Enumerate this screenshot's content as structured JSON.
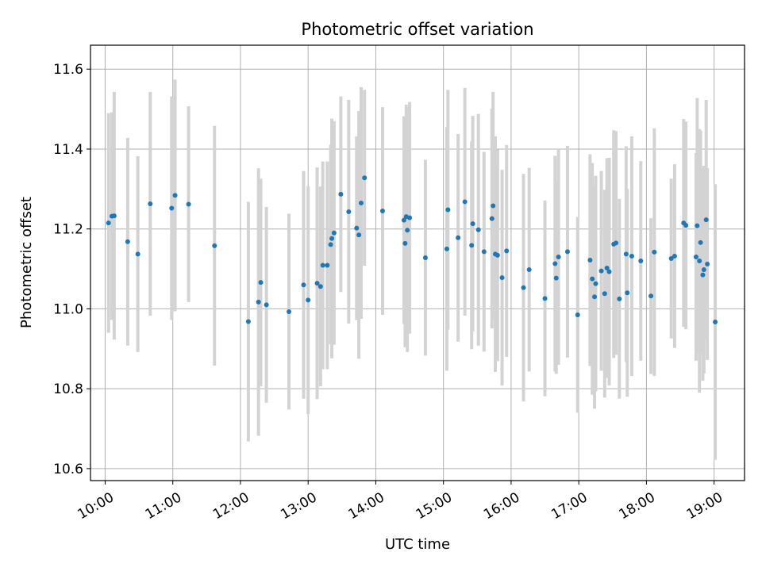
{
  "chart_data": {
    "type": "scatter",
    "title": "Photometric offset variation",
    "xlabel": "UTC time",
    "ylabel": "Photometric offset",
    "x_ticks": [
      "10:00",
      "11:00",
      "12:00",
      "13:00",
      "14:00",
      "15:00",
      "16:00",
      "17:00",
      "18:00",
      "19:00"
    ],
    "y_ticks": [
      "10.6",
      "10.8",
      "11.0",
      "11.2",
      "11.4",
      "11.6"
    ],
    "xlim": [
      "09:47",
      "19:27"
    ],
    "ylim": [
      10.57,
      11.66
    ],
    "grid": true,
    "errorbar_color": "#d3d3d3",
    "point_color": "#1f77b4",
    "points": [
      {
        "t": "10:03",
        "y": 11.215,
        "err": 0.275
      },
      {
        "t": "10:06",
        "y": 11.232,
        "err": 0.26
      },
      {
        "t": "10:08",
        "y": 11.233,
        "err": 0.31
      },
      {
        "t": "10:20",
        "y": 11.168,
        "err": 0.26
      },
      {
        "t": "10:29",
        "y": 11.137,
        "err": 0.245
      },
      {
        "t": "10:40",
        "y": 11.263,
        "err": 0.28
      },
      {
        "t": "10:59",
        "y": 11.252,
        "err": 0.28
      },
      {
        "t": "11:02",
        "y": 11.284,
        "err": 0.29
      },
      {
        "t": "11:14",
        "y": 11.262,
        "err": 0.245
      },
      {
        "t": "11:37",
        "y": 11.158,
        "err": 0.3
      },
      {
        "t": "12:07",
        "y": 10.968,
        "err": 0.3
      },
      {
        "t": "12:16",
        "y": 11.017,
        "err": 0.335
      },
      {
        "t": "12:18",
        "y": 11.066,
        "err": 0.26
      },
      {
        "t": "12:23",
        "y": 11.01,
        "err": 0.245
      },
      {
        "t": "12:43",
        "y": 10.993,
        "err": 0.245
      },
      {
        "t": "12:56",
        "y": 11.06,
        "err": 0.285
      },
      {
        "t": "13:00",
        "y": 11.022,
        "err": 0.285
      },
      {
        "t": "13:08",
        "y": 11.064,
        "err": 0.29
      },
      {
        "t": "13:11",
        "y": 11.056,
        "err": 0.25
      },
      {
        "t": "13:13",
        "y": 11.109,
        "err": 0.26
      },
      {
        "t": "13:17",
        "y": 11.109,
        "err": 0.26
      },
      {
        "t": "13:20",
        "y": 11.161,
        "err": 0.25
      },
      {
        "t": "13:21",
        "y": 11.176,
        "err": 0.3
      },
      {
        "t": "13:23",
        "y": 11.19,
        "err": 0.28
      },
      {
        "t": "13:29",
        "y": 11.287,
        "err": 0.245
      },
      {
        "t": "13:36",
        "y": 11.243,
        "err": 0.28
      },
      {
        "t": "13:43",
        "y": 11.202,
        "err": 0.23
      },
      {
        "t": "13:45",
        "y": 11.185,
        "err": 0.31
      },
      {
        "t": "13:47",
        "y": 11.265,
        "err": 0.29
      },
      {
        "t": "13:50",
        "y": 11.328,
        "err": 0.22
      },
      {
        "t": "14:06",
        "y": 11.245,
        "err": 0.26
      },
      {
        "t": "14:25",
        "y": 11.222,
        "err": 0.26
      },
      {
        "t": "14:26",
        "y": 11.164,
        "err": 0.26
      },
      {
        "t": "14:27",
        "y": 11.231,
        "err": 0.28
      },
      {
        "t": "14:28",
        "y": 11.197,
        "err": 0.305
      },
      {
        "t": "14:30",
        "y": 11.228,
        "err": 0.29
      },
      {
        "t": "14:44",
        "y": 11.128,
        "err": 0.245
      },
      {
        "t": "15:03",
        "y": 11.15,
        "err": 0.305
      },
      {
        "t": "15:04",
        "y": 11.248,
        "err": 0.3
      },
      {
        "t": "15:13",
        "y": 11.178,
        "err": 0.26
      },
      {
        "t": "15:19",
        "y": 11.268,
        "err": 0.285
      },
      {
        "t": "15:25",
        "y": 11.159,
        "err": 0.26
      },
      {
        "t": "15:26",
        "y": 11.213,
        "err": 0.27
      },
      {
        "t": "15:31",
        "y": 11.198,
        "err": 0.29
      },
      {
        "t": "15:36",
        "y": 11.143,
        "err": 0.25
      },
      {
        "t": "15:43",
        "y": 11.226,
        "err": 0.275
      },
      {
        "t": "15:44",
        "y": 11.258,
        "err": 0.285
      },
      {
        "t": "15:46",
        "y": 11.137,
        "err": 0.295
      },
      {
        "t": "15:48",
        "y": 11.134,
        "err": 0.265
      },
      {
        "t": "15:52",
        "y": 11.078,
        "err": 0.27
      },
      {
        "t": "15:56",
        "y": 11.145,
        "err": 0.265
      },
      {
        "t": "16:11",
        "y": 11.053,
        "err": 0.285
      },
      {
        "t": "16:16",
        "y": 11.098,
        "err": 0.255
      },
      {
        "t": "16:30",
        "y": 11.026,
        "err": 0.245
      },
      {
        "t": "16:39",
        "y": 11.113,
        "err": 0.27
      },
      {
        "t": "16:40",
        "y": 11.077,
        "err": 0.24
      },
      {
        "t": "16:42",
        "y": 11.13,
        "err": 0.27
      },
      {
        "t": "16:50",
        "y": 11.143,
        "err": 0.265
      },
      {
        "t": "16:59",
        "y": 10.985,
        "err": 0.245
      },
      {
        "t": "17:10",
        "y": 11.122,
        "err": 0.265
      },
      {
        "t": "17:12",
        "y": 11.075,
        "err": 0.29
      },
      {
        "t": "17:14",
        "y": 11.03,
        "err": 0.28
      },
      {
        "t": "17:15",
        "y": 11.063,
        "err": 0.27
      },
      {
        "t": "17:20",
        "y": 11.095,
        "err": 0.25
      },
      {
        "t": "17:23",
        "y": 11.038,
        "err": 0.26
      },
      {
        "t": "17:25",
        "y": 11.102,
        "err": 0.275
      },
      {
        "t": "17:27",
        "y": 11.093,
        "err": 0.285
      },
      {
        "t": "17:31",
        "y": 11.162,
        "err": 0.285
      },
      {
        "t": "17:33",
        "y": 11.165,
        "err": 0.28
      },
      {
        "t": "17:36",
        "y": 11.025,
        "err": 0.25
      },
      {
        "t": "17:42",
        "y": 11.137,
        "err": 0.27
      },
      {
        "t": "17:43",
        "y": 11.04,
        "err": 0.26
      },
      {
        "t": "17:47",
        "y": 11.132,
        "err": 0.3
      },
      {
        "t": "17:55",
        "y": 11.12,
        "err": 0.25
      },
      {
        "t": "18:04",
        "y": 11.032,
        "err": 0.195
      },
      {
        "t": "18:07",
        "y": 11.142,
        "err": 0.31
      },
      {
        "t": "18:22",
        "y": 11.126,
        "err": 0.2
      },
      {
        "t": "18:25",
        "y": 11.132,
        "err": 0.23
      },
      {
        "t": "18:33",
        "y": 11.215,
        "err": 0.26
      },
      {
        "t": "18:35",
        "y": 11.209,
        "err": 0.26
      },
      {
        "t": "18:44",
        "y": 11.13,
        "err": 0.26
      },
      {
        "t": "18:45",
        "y": 11.208,
        "err": 0.32
      },
      {
        "t": "18:47",
        "y": 11.12,
        "err": 0.33
      },
      {
        "t": "18:48",
        "y": 11.166,
        "err": 0.28
      },
      {
        "t": "18:50",
        "y": 11.085,
        "err": 0.265
      },
      {
        "t": "18:51",
        "y": 11.098,
        "err": 0.26
      },
      {
        "t": "18:53",
        "y": 11.223,
        "err": 0.3
      },
      {
        "t": "18:54",
        "y": 11.112,
        "err": 0.24
      },
      {
        "t": "19:01",
        "y": 10.967,
        "err": 0.345
      }
    ]
  }
}
